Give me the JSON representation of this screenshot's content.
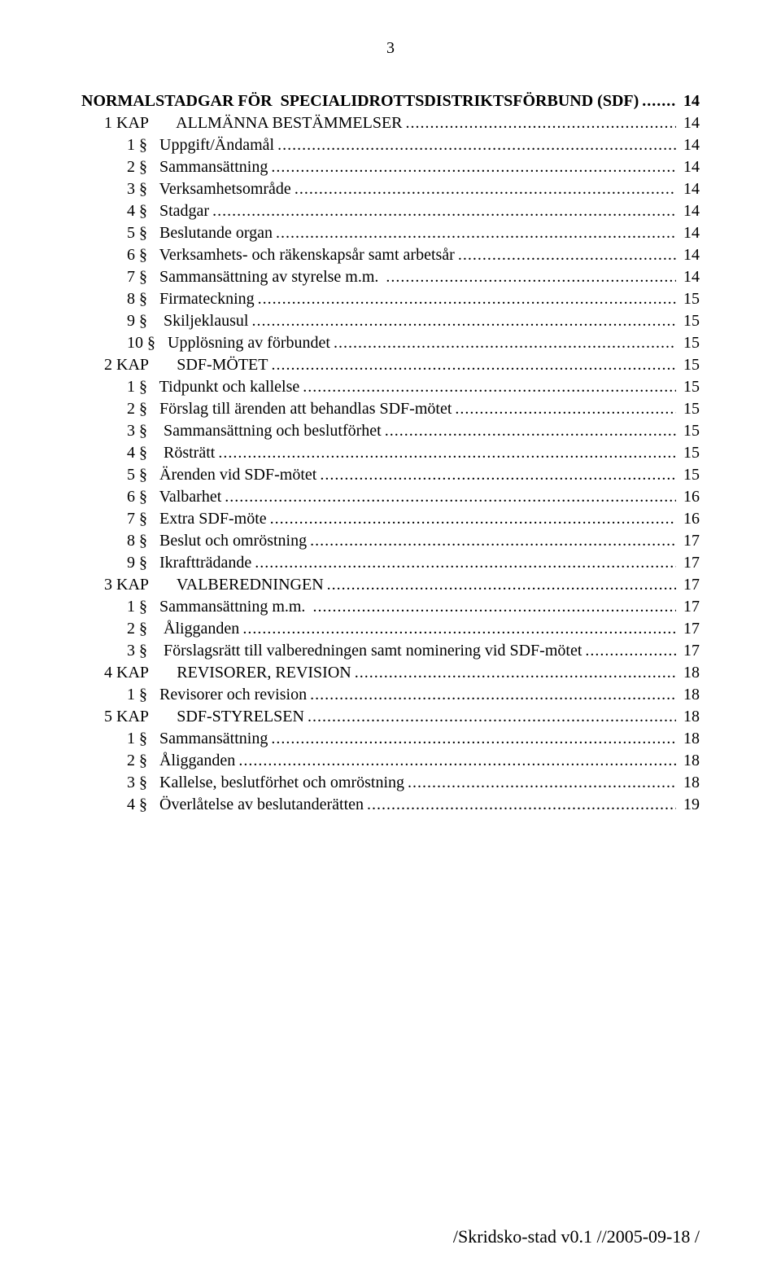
{
  "page_number": "3",
  "footer": "/Skridsko-stad v0.1 //2005-09-18 /",
  "toc": [
    {
      "label": "NORMALSTADGAR FÖR  SPECIALIDROTTSDISTRIKTSFÖRBUND (SDF)",
      "page": "14",
      "indent": 0,
      "bold": true
    },
    {
      "label": "1 KAP       ALLMÄNNA BESTÄMMELSER",
      "page": "14",
      "indent": 1,
      "bold": false
    },
    {
      "label": "1 §   Uppgift/Ändamål",
      "page": "14",
      "indent": 2,
      "bold": false
    },
    {
      "label": "2 §   Sammansättning",
      "page": "14",
      "indent": 2,
      "bold": false
    },
    {
      "label": "3 §   Verksamhetsområde",
      "page": "14",
      "indent": 2,
      "bold": false
    },
    {
      "label": "4 §   Stadgar",
      "page": "14",
      "indent": 2,
      "bold": false
    },
    {
      "label": "5 §   Beslutande organ",
      "page": "14",
      "indent": 2,
      "bold": false
    },
    {
      "label": "6 §   Verksamhets- och räkenskapsår samt arbetsår",
      "page": "14",
      "indent": 2,
      "bold": false
    },
    {
      "label": "7 §   Sammansättning av styrelse m.m. ",
      "page": "14",
      "indent": 2,
      "bold": false
    },
    {
      "label": "8 §   Firmateckning",
      "page": "15",
      "indent": 2,
      "bold": false
    },
    {
      "label": "9 §    Skiljeklausul",
      "page": "15",
      "indent": 2,
      "bold": false
    },
    {
      "label": "10 §   Upplösning av förbundet",
      "page": "15",
      "indent": 2,
      "bold": false
    },
    {
      "label": "2 KAP       SDF-MÖTET",
      "page": "15",
      "indent": 1,
      "bold": false
    },
    {
      "label": "1 §   Tidpunkt och kallelse",
      "page": "15",
      "indent": 2,
      "bold": false
    },
    {
      "label": "2 §   Förslag till ärenden att behandlas SDF-mötet",
      "page": "15",
      "indent": 2,
      "bold": false
    },
    {
      "label": "3 §    Sammansättning och beslutförhet",
      "page": "15",
      "indent": 2,
      "bold": false
    },
    {
      "label": "4 §    Rösträtt",
      "page": "15",
      "indent": 2,
      "bold": false
    },
    {
      "label": "5 §   Ärenden vid SDF-mötet",
      "page": "15",
      "indent": 2,
      "bold": false
    },
    {
      "label": "6 §   Valbarhet",
      "page": "16",
      "indent": 2,
      "bold": false
    },
    {
      "label": "7 §   Extra SDF-möte",
      "page": "16",
      "indent": 2,
      "bold": false
    },
    {
      "label": "8 §   Beslut och omröstning",
      "page": "17",
      "indent": 2,
      "bold": false
    },
    {
      "label": "9 §   Ikraftträdande",
      "page": "17",
      "indent": 2,
      "bold": false
    },
    {
      "label": "3 KAP       VALBEREDNINGEN",
      "page": "17",
      "indent": 1,
      "bold": false
    },
    {
      "label": "1 §   Sammansättning m.m. ",
      "page": "17",
      "indent": 2,
      "bold": false
    },
    {
      "label": "2 §    Åligganden",
      "page": "17",
      "indent": 2,
      "bold": false
    },
    {
      "label": "3 §    Förslagsrätt till valberedningen samt nominering vid SDF-mötet",
      "page": "17",
      "indent": 2,
      "bold": false
    },
    {
      "label": "4 KAP       REVISORER, REVISION",
      "page": "18",
      "indent": 1,
      "bold": false
    },
    {
      "label": "1 §   Revisorer och revision",
      "page": "18",
      "indent": 2,
      "bold": false
    },
    {
      "label": "5 KAP       SDF-STYRELSEN",
      "page": "18",
      "indent": 1,
      "bold": false
    },
    {
      "label": "1 §   Sammansättning",
      "page": "18",
      "indent": 2,
      "bold": false
    },
    {
      "label": "2 §   Åligganden",
      "page": "18",
      "indent": 2,
      "bold": false
    },
    {
      "label": "3 §   Kallelse, beslutförhet och omröstning",
      "page": "18",
      "indent": 2,
      "bold": false
    },
    {
      "label": "4 §   Överlåtelse av beslutanderätten",
      "page": "19",
      "indent": 2,
      "bold": false
    }
  ]
}
